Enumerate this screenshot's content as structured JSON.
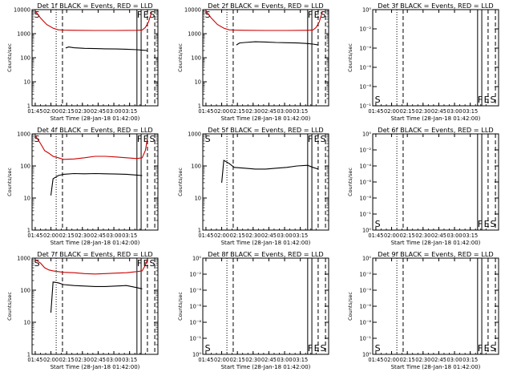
{
  "chart_data": {
    "type": "line",
    "x_units": "minutes after 01:42:00 (start time)",
    "panels": [
      {
        "title": "Det 1f BLACK = Events, RED = LLD",
        "ylabel": "Counts/sec",
        "xlabel": "Start Time (28-Jan-18 01:42:00)",
        "x_tick_labels": [
          "01:45",
          "02:00",
          "02:15",
          "02:30",
          "02:45",
          "03:00",
          "03:15"
        ],
        "y_tick_labels": [
          "1",
          "10",
          "100",
          "1000",
          "10000"
        ],
        "y_log": true,
        "ylim": [
          1,
          10000
        ],
        "flags": [
          "S",
          "F",
          "E",
          "S"
        ],
        "series": [
          {
            "role": "events",
            "color": "#000000",
            "x": [
              32,
              35,
              40,
              50,
              60,
              70,
              80,
              90,
              100,
              105,
              110
            ],
            "y": [
              255,
              280,
              260,
              245,
              240,
              235,
              230,
              225,
              215,
              205,
              200
            ]
          },
          {
            "role": "lld",
            "color": "#cc0000",
            "x": [
              3,
              8,
              14,
              20,
              25,
              30,
              40,
              60,
              80,
              100,
              105,
              108,
              111,
              114
            ],
            "y": [
              9000,
              4500,
              2400,
              1700,
              1450,
              1400,
              1380,
              1360,
              1360,
              1380,
              1420,
              1800,
              3000,
              8000
            ]
          }
        ]
      },
      {
        "title": "Det 2f BLACK = Events, RED = LLD",
        "ylabel": "Counts/sec",
        "xlabel": "Start Time (28-Jan-18 01:42:00)",
        "x_tick_labels": [
          "01:45",
          "02:00",
          "02:15",
          "02:30",
          "02:45",
          "03:00",
          "03:15"
        ],
        "y_tick_labels": [
          "1",
          "10",
          "100",
          "1000",
          "10000"
        ],
        "y_log": true,
        "ylim": [
          1,
          10000
        ],
        "flags": [
          "S",
          "F",
          "E",
          "S"
        ],
        "series": [
          {
            "role": "events",
            "color": "#000000",
            "x": [
              32,
              35,
              40,
              50,
              60,
              70,
              80,
              90,
              100,
              105,
              110
            ],
            "y": [
              340,
              410,
              430,
              460,
              450,
              430,
              420,
              410,
              390,
              370,
              340
            ]
          },
          {
            "role": "lld",
            "color": "#cc0000",
            "x": [
              3,
              8,
              14,
              20,
              25,
              30,
              40,
              60,
              80,
              100,
              105,
              108,
              111,
              114
            ],
            "y": [
              9000,
              4500,
              2400,
              1700,
              1450,
              1400,
              1380,
              1360,
              1360,
              1380,
              1420,
              1800,
              3000,
              8000
            ]
          }
        ]
      },
      {
        "title": "Det 3f BLACK = Events, RED = LLD",
        "ylabel": "Counts/sec",
        "xlabel": "Start Time (28-Jan-18 01:42:00)",
        "x_tick_labels": [
          "01:45",
          "02:00",
          "02:15",
          "02:30",
          "02:45",
          "03:00",
          "03:15"
        ],
        "y_tick_labels": [
          "10⁻¹",
          "10⁻⁸",
          "10⁻⁶",
          "10⁻⁴",
          "10⁻²",
          "10⁰"
        ],
        "y_log": false,
        "ylim": [
          0,
          5
        ],
        "flags": [
          "S",
          "F",
          "E",
          "S"
        ],
        "series": []
      },
      {
        "title": "Det 4f BLACK = Events, RED = LLD",
        "ylabel": "Counts/sec",
        "xlabel": "Start Time (28-Jan-18 01:42:00)",
        "x_tick_labels": [
          "01:45",
          "02:00",
          "02:15",
          "02:30",
          "02:45",
          "03:00",
          "03:15"
        ],
        "y_tick_labels": [
          "1",
          "10",
          "100",
          "1000"
        ],
        "y_log": true,
        "ylim": [
          1,
          1000
        ],
        "flags": [
          "S",
          "F",
          "E",
          "S"
        ],
        "series": [
          {
            "role": "events",
            "color": "#000000",
            "x": [
              18,
              20,
              25,
              30,
              40,
              50,
              60,
              70,
              80,
              90,
              100,
              105
            ],
            "y": [
              12,
              40,
              50,
              55,
              58,
              57,
              58,
              57,
              56,
              55,
              52,
              50
            ]
          },
          {
            "role": "lld",
            "color": "#cc0000",
            "x": [
              3,
              8,
              12,
              16,
              20,
              25,
              30,
              40,
              50,
              60,
              70,
              80,
              90,
              100,
              105,
              108,
              110
            ],
            "y": [
              900,
              500,
              300,
              250,
              200,
              180,
              160,
              165,
              180,
              200,
              200,
              190,
              180,
              170,
              180,
              300,
              700
            ]
          }
        ]
      },
      {
        "title": "Det 5f BLACK = Events, RED = LLD",
        "ylabel": "Counts/sec",
        "xlabel": "Start Time (28-Jan-18 01:42:00)",
        "x_tick_labels": [
          "01:45",
          "02:00",
          "02:15",
          "02:30",
          "02:45",
          "03:00",
          "03:15"
        ],
        "y_tick_labels": [
          "1",
          "10",
          "100",
          "1000"
        ],
        "y_log": true,
        "ylim": [
          1,
          1000
        ],
        "flags": [
          "S",
          "F",
          "E",
          "S"
        ],
        "series": [
          {
            "role": "events",
            "color": "#000000",
            "x": [
              18,
              20,
              25,
              30,
              40,
              50,
              60,
              70,
              80,
              90,
              100,
              105,
              110
            ],
            "y": [
              30,
              150,
              120,
              90,
              85,
              80,
              80,
              85,
              90,
              100,
              105,
              90,
              80
            ]
          }
        ]
      },
      {
        "title": "Det 6f BLACK = Events, RED = LLD",
        "ylabel": "Counts/sec",
        "xlabel": "Start Time (28-Jan-18 01:42:00)",
        "x_tick_labels": [
          "01:45",
          "02:00",
          "02:15",
          "02:30",
          "02:45",
          "03:00",
          "03:15"
        ],
        "y_tick_labels": [
          "10⁰",
          "10⁻¹",
          "10⁻⁸",
          "10⁻⁶",
          "10⁻⁴",
          "10⁻²",
          "10⁰"
        ],
        "y_log": false,
        "ylim": [
          0,
          6
        ],
        "flags": [
          "S",
          "F",
          "E",
          "S"
        ],
        "series": []
      },
      {
        "title": "Det 7f BLACK = Events, RED = LLD",
        "ylabel": "Counts/sec",
        "xlabel": "Start Time (28-Jan-18 01:42:00)",
        "x_tick_labels": [
          "01:45",
          "02:00",
          "02:15",
          "02:30",
          "02:45",
          "03:00",
          "03:15"
        ],
        "y_tick_labels": [
          "1",
          "10",
          "100",
          "1000"
        ],
        "y_log": true,
        "ylim": [
          1,
          1000
        ],
        "flags": [
          "S",
          "F",
          "E",
          "S"
        ],
        "series": [
          {
            "role": "events",
            "color": "#000000",
            "x": [
              18,
              20,
              25,
              30,
              40,
              50,
              60,
              70,
              80,
              90,
              100,
              105
            ],
            "y": [
              20,
              180,
              170,
              150,
              140,
              135,
              130,
              130,
              135,
              140,
              120,
              110
            ]
          },
          {
            "role": "lld",
            "color": "#cc0000",
            "x": [
              3,
              8,
              12,
              16,
              20,
              25,
              30,
              40,
              50,
              60,
              70,
              80,
              90,
              100,
              105,
              108,
              110
            ],
            "y": [
              900,
              700,
              500,
              430,
              400,
              380,
              360,
              350,
              330,
              320,
              330,
              340,
              350,
              380,
              400,
              600,
              900
            ]
          }
        ]
      },
      {
        "title": "Det 8f BLACK = Events, RED = LLD",
        "ylabel": "Counts/sec",
        "xlabel": "Start Time (28-Jan-18 01:42:00)",
        "x_tick_labels": [
          "01:45",
          "02:00",
          "02:15",
          "02:30",
          "02:45",
          "03:00",
          "03:15"
        ],
        "y_tick_labels": [
          "10⁰",
          "10⁻¹",
          "10⁻⁸",
          "10⁻⁶",
          "10⁻⁴",
          "10⁻²",
          "10⁰"
        ],
        "y_log": false,
        "ylim": [
          0,
          6
        ],
        "flags": [
          "S",
          "F",
          "E",
          "S"
        ],
        "series": []
      },
      {
        "title": "Det 9f BLACK = Events, RED = LLD",
        "ylabel": "Counts/sec",
        "xlabel": "Start Time (28-Jan-18 01:42:00)",
        "x_tick_labels": [
          "01:45",
          "02:00",
          "02:15",
          "02:30",
          "02:45",
          "03:00",
          "03:15"
        ],
        "y_tick_labels": [
          "10⁰",
          "10⁻¹",
          "10⁻⁸",
          "10⁻⁶",
          "10⁻⁴",
          "10⁻²",
          "10⁰"
        ],
        "y_log": false,
        "ylim": [
          0,
          6
        ],
        "flags": [
          "S",
          "F",
          "E",
          "S"
        ],
        "series": []
      }
    ]
  }
}
